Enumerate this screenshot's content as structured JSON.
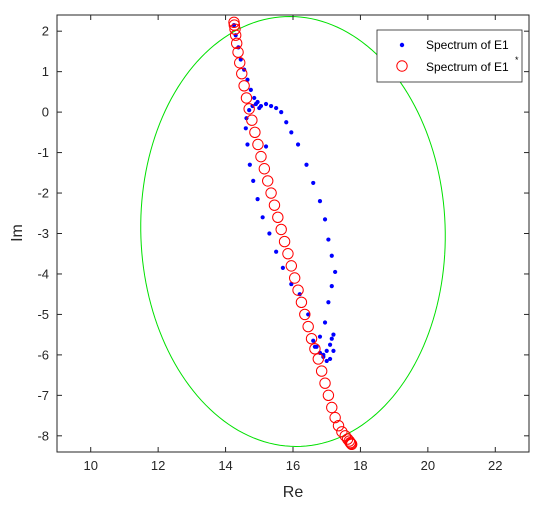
{
  "chart_data": {
    "type": "scatter",
    "title": "",
    "xlabel": "Re",
    "ylabel": "Im",
    "xlim": [
      9,
      23
    ],
    "ylim": [
      -8.4,
      2.4
    ],
    "xticks": [
      10,
      12,
      14,
      16,
      18,
      20,
      22
    ],
    "yticks": [
      2,
      1,
      0,
      -1,
      -2,
      -3,
      -4,
      -5,
      -6,
      -7,
      -8
    ],
    "grid": false,
    "legend_position": "top-right",
    "legend": {
      "entries": [
        {
          "text": "Spectrum of E1",
          "sup": ""
        },
        {
          "text": "Spectrum of E1",
          "sup": "*"
        }
      ]
    },
    "series": [
      {
        "name": "Spectrum of E1",
        "marker": "dot",
        "color": "#0000ff",
        "x": [
          14.25,
          14.3,
          14.38,
          14.45,
          14.55,
          14.65,
          14.75,
          14.85,
          14.95,
          15.05,
          15.2,
          15.35,
          15.5,
          15.65,
          15.8,
          15.95,
          16.15,
          16.4,
          16.6,
          16.8,
          16.95,
          17.05,
          17.15,
          17.25,
          17.15,
          17.05,
          16.95,
          16.8,
          16.65,
          16.45,
          16.2,
          15.95,
          15.7,
          15.5,
          15.3,
          15.1,
          14.95,
          14.82,
          14.72,
          14.65,
          14.6,
          14.62,
          14.7,
          14.8,
          14.9,
          15.0,
          15.2,
          16.6,
          16.7,
          16.8,
          16.9,
          17.0,
          17.1,
          17.15,
          17.2,
          17.1,
          17.0,
          16.9,
          17.2
        ],
        "y": [
          2.15,
          1.9,
          1.6,
          1.3,
          1.05,
          0.8,
          0.55,
          0.35,
          0.25,
          0.15,
          0.2,
          0.15,
          0.1,
          0.0,
          -0.25,
          -0.5,
          -0.8,
          -1.3,
          -1.75,
          -2.2,
          -2.65,
          -3.15,
          -3.55,
          -3.95,
          -4.3,
          -4.7,
          -5.2,
          -5.55,
          -5.8,
          -5.0,
          -4.5,
          -4.25,
          -3.85,
          -3.45,
          -3.0,
          -2.6,
          -2.15,
          -1.7,
          -1.3,
          -0.8,
          -0.4,
          -0.15,
          0.05,
          0.15,
          0.2,
          0.1,
          -0.85,
          -5.65,
          -5.8,
          -5.95,
          -6.05,
          -5.9,
          -5.75,
          -5.6,
          -5.5,
          -6.1,
          -6.15,
          -6.0,
          -5.9
        ]
      },
      {
        "name": "Spectrum of E1*",
        "marker": "circle",
        "color": "#ff0000",
        "x": [
          14.25,
          14.26,
          14.28,
          14.3,
          14.33,
          14.37,
          14.42,
          14.48,
          14.55,
          14.62,
          14.7,
          14.78,
          14.87,
          14.96,
          15.05,
          15.15,
          15.25,
          15.35,
          15.45,
          15.55,
          15.65,
          15.75,
          15.85,
          15.95,
          16.05,
          16.15,
          16.25,
          16.35,
          16.45,
          16.55,
          16.65,
          16.75,
          16.85,
          16.95,
          17.05,
          17.15,
          17.25,
          17.35,
          17.45,
          17.55,
          17.62,
          17.67,
          17.7,
          17.72,
          17.74
        ],
        "y": [
          2.22,
          2.15,
          2.05,
          1.9,
          1.7,
          1.48,
          1.22,
          0.95,
          0.65,
          0.35,
          0.08,
          -0.2,
          -0.5,
          -0.8,
          -1.1,
          -1.4,
          -1.7,
          -2.0,
          -2.3,
          -2.6,
          -2.9,
          -3.2,
          -3.5,
          -3.8,
          -4.1,
          -4.4,
          -4.7,
          -5.0,
          -5.3,
          -5.6,
          -5.85,
          -6.1,
          -6.4,
          -6.7,
          -7.0,
          -7.3,
          -7.55,
          -7.75,
          -7.9,
          -8.0,
          -8.08,
          -8.13,
          -8.17,
          -8.19,
          -8.21
        ]
      },
      {
        "name": "",
        "marker": "line",
        "color": "#00e000",
        "shape": "ellipse",
        "center": [
          16.0,
          -2.95
        ],
        "rx": 4.6,
        "ry": 5.4,
        "rotation_deg": -12
      }
    ]
  }
}
